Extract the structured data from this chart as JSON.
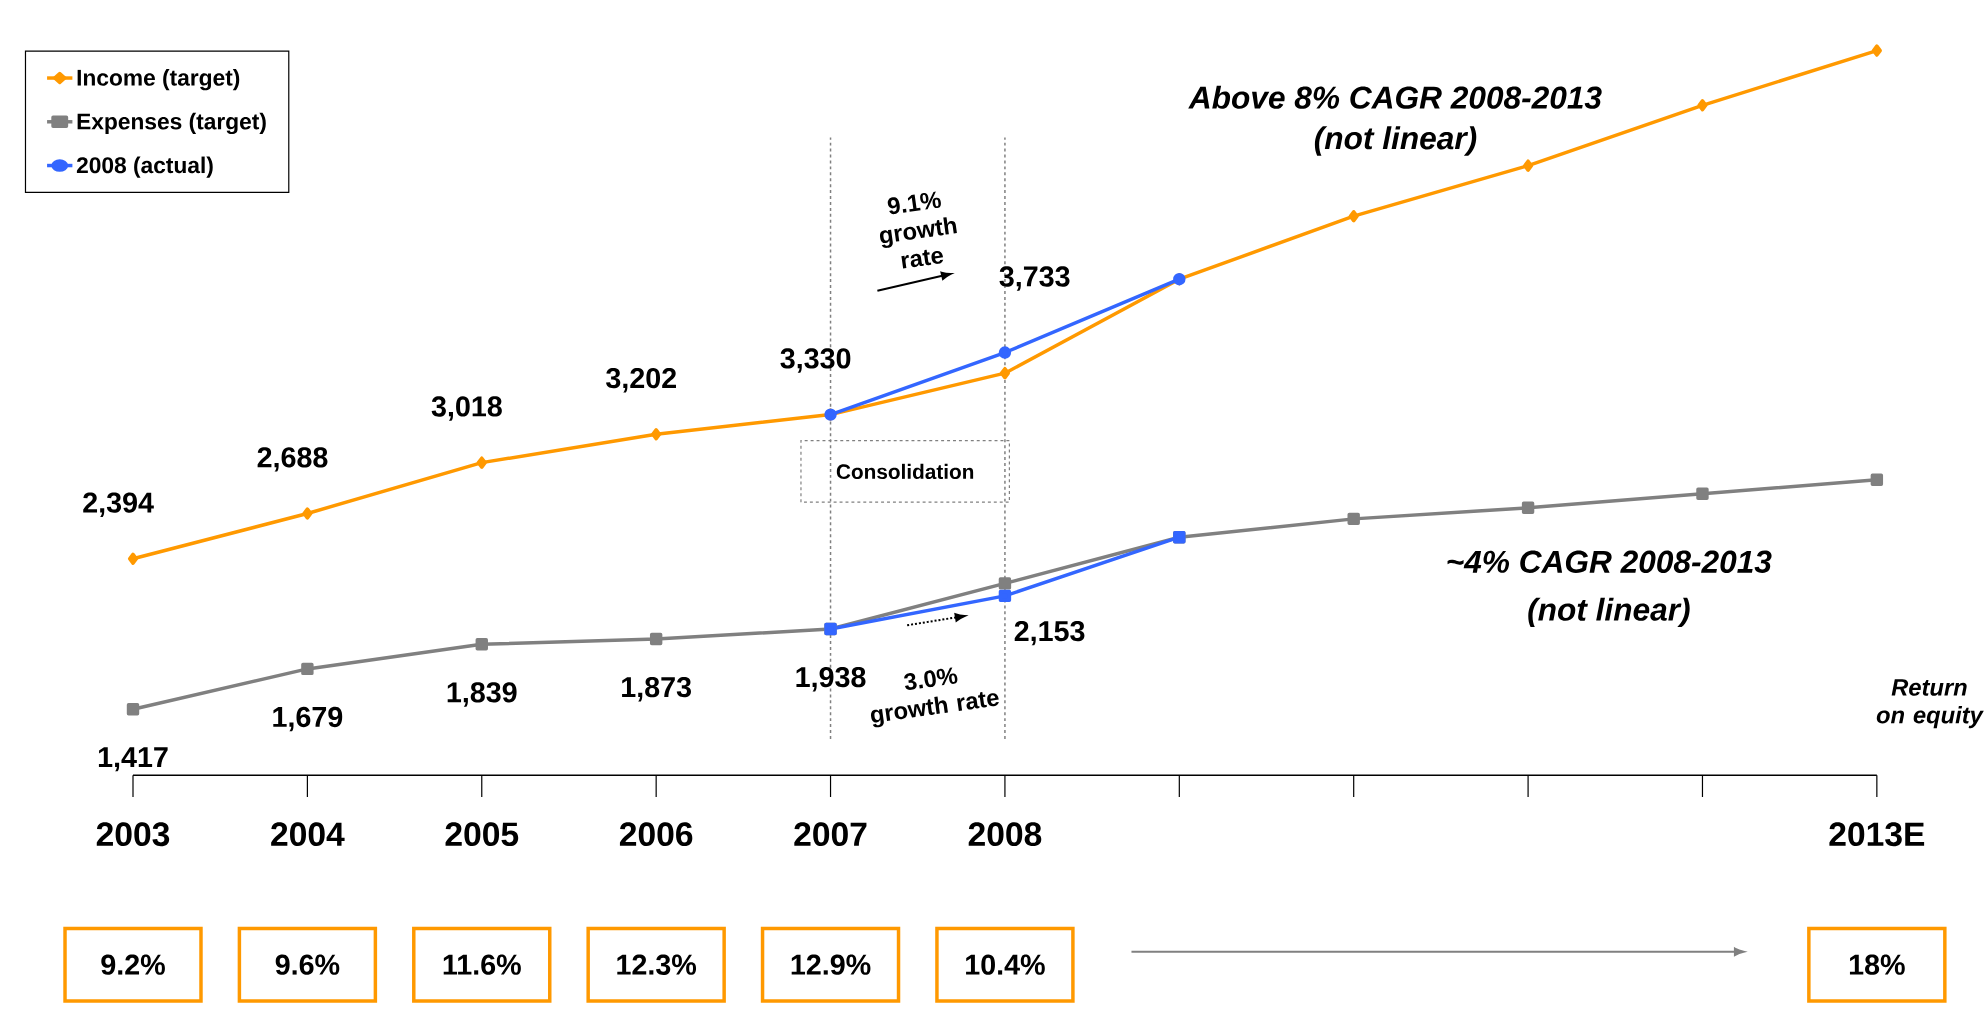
{
  "chart_data": {
    "type": "line",
    "categories": [
      "2003",
      "2004",
      "2005",
      "2006",
      "2007",
      "2008",
      null,
      null,
      null,
      null,
      "2013E"
    ],
    "series": [
      {
        "name": "Income (target)",
        "color": "#ff9900",
        "marker": "diamond",
        "values": [
          2394,
          2688,
          3018,
          3202,
          3330,
          3599,
          4209,
          4618,
          4946,
          5338,
          5693
        ],
        "value_labels": [
          "2,394",
          "2,688",
          "3,018",
          "3,202",
          "3,330",
          null,
          null,
          null,
          null,
          null,
          null
        ]
      },
      {
        "name": "Expenses (target)",
        "color": "#808080",
        "marker": "square",
        "values": [
          1417,
          1679,
          1839,
          1873,
          1938,
          2234,
          2534,
          2653,
          2725,
          2816,
          2907
        ],
        "value_labels": [
          "1,417",
          "1,679",
          "1,839",
          "1,873",
          "1,938",
          null,
          null,
          null,
          null,
          null,
          null
        ]
      },
      {
        "name": "2008 (actual)",
        "color": "#3366ff",
        "marker": "circle",
        "values": [
          null,
          null,
          null,
          null,
          3330,
          3733,
          4209,
          null,
          null,
          null,
          null
        ],
        "value_labels": [
          null,
          null,
          null,
          null,
          null,
          "3,733",
          null,
          null,
          null,
          null,
          null
        ]
      },
      {
        "color": "#3366ff",
        "marker": "square",
        "values": [
          null,
          null,
          null,
          null,
          1938,
          2153,
          2534,
          null,
          null,
          null,
          null
        ],
        "value_labels": [
          null,
          null,
          null,
          null,
          null,
          "2,153",
          null,
          null,
          null,
          null,
          null
        ]
      }
    ],
    "ref_lines": [
      {
        "axis": "x",
        "value": "2007",
        "color": "#808080",
        "line_style": "dashed"
      },
      {
        "axis": "x",
        "value": "2008",
        "color": "#808080",
        "line_style": "dashed"
      }
    ],
    "legend": "top left",
    "annotations": [
      "Above 8% CAGR 2008-2013",
      "(not linear)",
      "~4% CAGR 2008-2013",
      "(not linear)",
      "9.1% growth rate",
      "3.0% growth rate",
      "Consolidation",
      "Return on equity",
      "9.2%",
      "9.6%",
      "11.6%",
      "12.3%",
      "12.9%",
      "10.4%",
      "18%"
    ]
  }
}
